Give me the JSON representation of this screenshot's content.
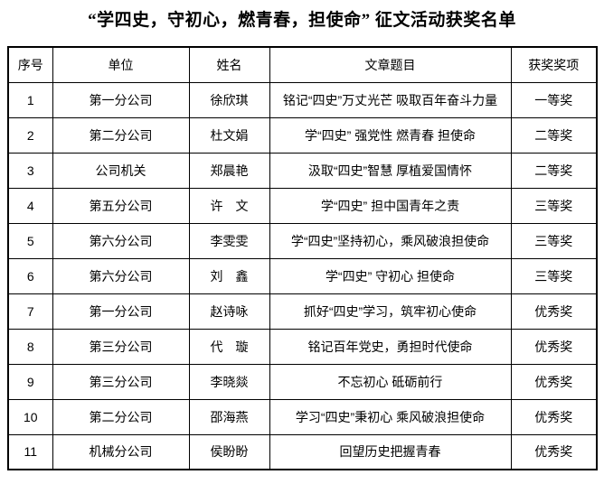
{
  "page": {
    "title": "“学四史，守初心，燃青春，担使命” 征文活动获奖名单"
  },
  "table": {
    "columns": [
      "序号",
      "单位",
      "姓名",
      "文章题目",
      "获奖奖项"
    ],
    "rows": [
      [
        "1",
        "第一分公司",
        "徐欣琪",
        "铭记“四史”万丈光芒 吸取百年奋斗力量",
        "一等奖"
      ],
      [
        "2",
        "第二分公司",
        "杜文娟",
        "学“四史” 强党性 燃青春 担使命",
        "二等奖"
      ],
      [
        "3",
        "公司机关",
        "郑晨艳",
        "汲取“四史”智慧 厚植爱国情怀",
        "二等奖"
      ],
      [
        "4",
        "第五分公司",
        "许　文",
        "学“四史” 担中国青年之责",
        "三等奖"
      ],
      [
        "5",
        "第六分公司",
        "李雯雯",
        "学“四史”坚持初心，乘风破浪担使命",
        "三等奖"
      ],
      [
        "6",
        "第六分公司",
        "刘　鑫",
        "学“四史” 守初心 担使命",
        "三等奖"
      ],
      [
        "7",
        "第一分公司",
        "赵诗咏",
        "抓好“四史”学习，筑牢初心使命",
        "优秀奖"
      ],
      [
        "8",
        "第三分公司",
        "代　璇",
        "铭记百年党史，勇担时代使命",
        "优秀奖"
      ],
      [
        "9",
        "第三分公司",
        "李晓燚",
        "不忘初心 砥砺前行",
        "优秀奖"
      ],
      [
        "10",
        "第二分公司",
        "邵海燕",
        "学习“四史”秉初心 乘风破浪担使命",
        "优秀奖"
      ],
      [
        "11",
        "机械分公司",
        "侯盼盼",
        "回望历史把握青春",
        "优秀奖"
      ]
    ]
  },
  "colors": {
    "border": "#000000",
    "text": "#000000",
    "background": "#ffffff"
  }
}
